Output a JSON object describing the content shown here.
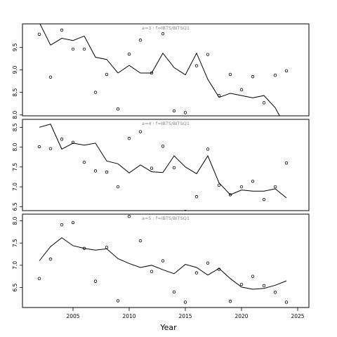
{
  "chart_data": {
    "type": "line",
    "xlabel": "Year",
    "xlim": [
      2000.5,
      2026.0
    ],
    "xticks": [
      2005,
      2010,
      2015,
      2020,
      2025
    ],
    "colors": {
      "line": "#000000",
      "points": "#000000",
      "title": "#888888"
    },
    "panels": [
      {
        "title": "a=3 : f=IBTS/BITSQ1",
        "ylim": [
          7.98,
          10.02
        ],
        "yticks": [
          8.0,
          8.5,
          9.0,
          9.5
        ],
        "line": {
          "x": [
            2002,
            2003,
            2004,
            2005,
            2006,
            2007,
            2008,
            2009,
            2010,
            2011,
            2012,
            2013,
            2014,
            2015,
            2016,
            2017,
            2018,
            2019,
            2020,
            2021,
            2022,
            2023,
            2024
          ],
          "y": [
            10.05,
            9.55,
            9.7,
            9.65,
            9.75,
            9.28,
            9.23,
            8.93,
            9.1,
            8.93,
            8.93,
            9.37,
            9.05,
            8.89,
            9.37,
            8.79,
            8.39,
            8.48,
            8.43,
            8.38,
            8.43,
            8.16,
            7.7
          ]
        },
        "points": {
          "x": [
            2002,
            2003,
            2004,
            2005,
            2006,
            2007,
            2008,
            2009,
            2010,
            2011,
            2012,
            2013,
            2014,
            2015,
            2016,
            2017,
            2018,
            2019,
            2020,
            2021,
            2022,
            2023,
            2024
          ],
          "y": [
            9.79,
            8.84,
            9.88,
            9.46,
            9.46,
            8.5,
            8.9,
            8.13,
            9.35,
            9.66,
            8.93,
            9.8,
            8.09,
            8.05,
            9.09,
            9.34,
            8.43,
            8.9,
            8.56,
            8.85,
            8.27,
            8.88,
            8.98
          ]
        }
      },
      {
        "title": "a=4 : f=IBTS/BITSQ1",
        "ylim": [
          6.4,
          8.7
        ],
        "yticks": [
          6.5,
          7.0,
          7.5,
          8.0,
          8.5
        ],
        "line": {
          "x": [
            2002,
            2003,
            2004,
            2005,
            2006,
            2007,
            2008,
            2009,
            2010,
            2011,
            2012,
            2013,
            2014,
            2015,
            2016,
            2017,
            2018,
            2019,
            2020,
            2021,
            2022,
            2023,
            2024
          ],
          "y": [
            8.5,
            8.58,
            7.95,
            8.1,
            8.05,
            8.1,
            7.65,
            7.58,
            7.35,
            7.55,
            7.38,
            7.36,
            7.78,
            7.5,
            7.33,
            7.78,
            7.1,
            6.8,
            6.92,
            6.89,
            6.89,
            6.95,
            6.72
          ]
        },
        "points": {
          "x": [
            2002,
            2003,
            2004,
            2005,
            2006,
            2007,
            2008,
            2009,
            2010,
            2011,
            2012,
            2013,
            2014,
            2015,
            2016,
            2017,
            2018,
            2019,
            2020,
            2021,
            2022,
            2023,
            2024
          ],
          "y": [
            8.01,
            7.96,
            8.2,
            8.12,
            7.62,
            7.4,
            7.37,
            7.0,
            8.22,
            8.39,
            7.47,
            8.02,
            7.48,
            6.38,
            6.75,
            7.95,
            7.04,
            6.8,
            7.0,
            7.14,
            6.68,
            7.0,
            7.6
          ]
        }
      },
      {
        "title": "a=5 : f=IBTS/BITSQ1",
        "ylim": [
          6.05,
          8.15
        ],
        "yticks": [
          6.5,
          7.0,
          7.5,
          8.0
        ],
        "line": {
          "x": [
            2002,
            2003,
            2004,
            2005,
            2006,
            2007,
            2008,
            2009,
            2010,
            2011,
            2012,
            2013,
            2014,
            2015,
            2016,
            2017,
            2018,
            2019,
            2020,
            2021,
            2022,
            2023,
            2024
          ],
          "y": [
            7.1,
            7.42,
            7.62,
            7.44,
            7.38,
            7.34,
            7.37,
            7.15,
            7.04,
            6.95,
            7.0,
            6.9,
            6.81,
            7.02,
            6.95,
            6.78,
            6.93,
            6.7,
            6.51,
            6.46,
            6.48,
            6.55,
            6.65
          ]
        },
        "points": {
          "x": [
            2002,
            2003,
            2004,
            2005,
            2006,
            2007,
            2008,
            2009,
            2010,
            2011,
            2012,
            2013,
            2014,
            2015,
            2016,
            2017,
            2018,
            2019,
            2020,
            2021,
            2022,
            2023,
            2024
          ],
          "y": [
            6.7,
            7.14,
            7.91,
            7.96,
            7.38,
            6.64,
            7.4,
            6.2,
            8.1,
            7.55,
            6.86,
            7.1,
            6.4,
            6.17,
            6.83,
            7.05,
            6.91,
            6.19,
            6.57,
            6.75,
            6.54,
            6.39,
            6.17
          ]
        }
      }
    ]
  }
}
